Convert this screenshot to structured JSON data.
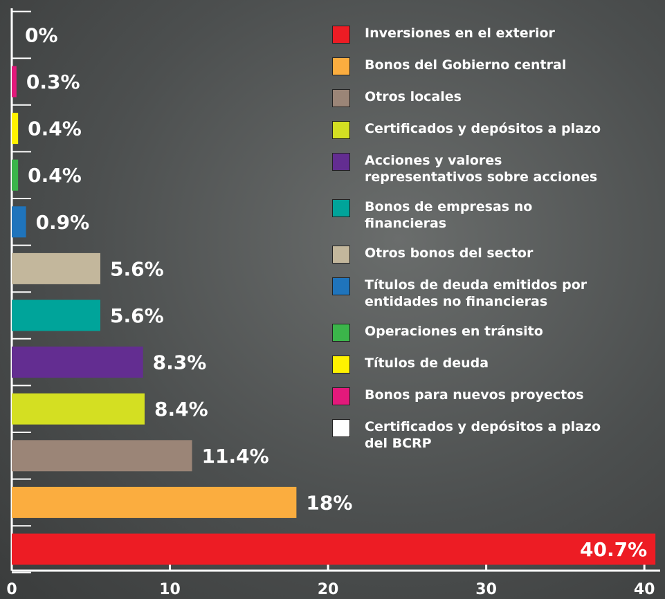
{
  "chart_data": {
    "type": "bar",
    "orientation": "horizontal",
    "categories": [
      "Inversiones en el exterior",
      "Bonos del Gobierno central",
      "Otros locales",
      "Certificados y depósitos a plazo",
      "Acciones y valores representativos sobre acciones",
      "Bonos de empresas no financieras",
      "Otros bonos del sector",
      "Títulos de deuda emitidos por entidades no financieras",
      "Operaciones en tránsito",
      "Títulos de deuda",
      "Bonos para nuevos proyectos",
      "Certificados y depósitos a plazo del BCRP"
    ],
    "values": [
      40.7,
      18,
      11.4,
      8.4,
      8.3,
      5.6,
      5.6,
      0.9,
      0.4,
      0.4,
      0.3,
      0
    ],
    "value_labels": [
      "40.7%",
      "18%",
      "11.4%",
      "8.4%",
      "8.3%",
      "5.6%",
      "5.6%",
      "0.9%",
      "0.4%",
      "0.4%",
      "0.3%",
      "0%"
    ],
    "colors": [
      "#ed1c24",
      "#fbad3f",
      "#9b8577",
      "#d4df22",
      "#632d91",
      "#00a49a",
      "#c3b79c",
      "#1f74bc",
      "#3bb54a",
      "#fff200",
      "#e3197b",
      "#ffffff"
    ],
    "xlim": [
      0,
      41
    ],
    "xticks": [
      0,
      10,
      20,
      30,
      40
    ]
  }
}
